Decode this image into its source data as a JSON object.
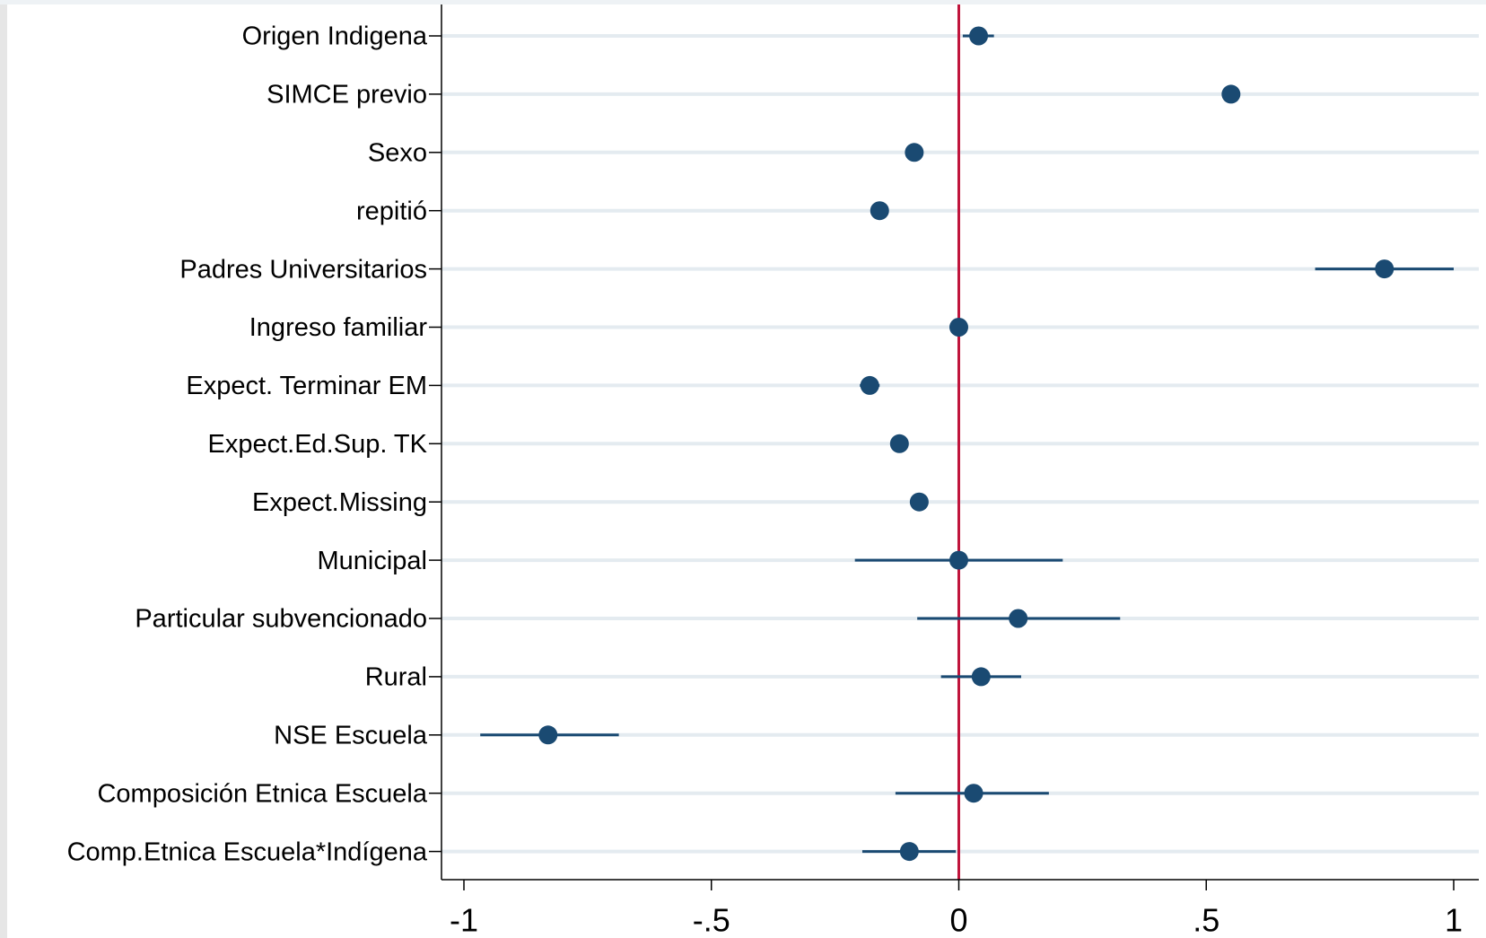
{
  "chart_data": {
    "type": "coefplot",
    "categories": [
      "Origen Indigena",
      "SIMCE previo",
      "Sexo",
      "repitió",
      "Padres Universitarios",
      "Ingreso familiar",
      "Expect. Terminar EM",
      "Expect.Ed.Sup. TK",
      "Expect.Missing",
      "Municipal",
      "Particular subvencionado",
      "Rural",
      "NSE Escuela",
      "Composición Etnica Escuela",
      "Comp.Etnica Escuela*Indígena"
    ],
    "values": [
      0.04,
      0.55,
      -0.09,
      -0.16,
      0.86,
      0.0,
      -0.18,
      -0.12,
      -0.08,
      0.0,
      0.12,
      0.045,
      -0.83,
      0.03,
      -0.1
    ],
    "lower": [
      0.008,
      0.54,
      -0.1,
      -0.17,
      0.72,
      -0.005,
      -0.2,
      -0.13,
      -0.09,
      -0.21,
      -0.084,
      -0.036,
      -0.967,
      -0.128,
      -0.195
    ],
    "upper": [
      0.071,
      0.56,
      -0.08,
      -0.15,
      1.0,
      0.005,
      -0.16,
      -0.11,
      -0.07,
      0.21,
      0.326,
      0.126,
      -0.687,
      0.182,
      -0.006
    ],
    "color": "#1a4a72",
    "reference_line": 0,
    "reference_color": "#c0143c",
    "xlim": [
      -1.05,
      1.05
    ],
    "xticks": [
      -1,
      {
        "value": -0.5,
        "label": "-.5"
      },
      0,
      {
        "value": 0.5,
        "label": ".5"
      },
      1
    ],
    "grid": true
  }
}
